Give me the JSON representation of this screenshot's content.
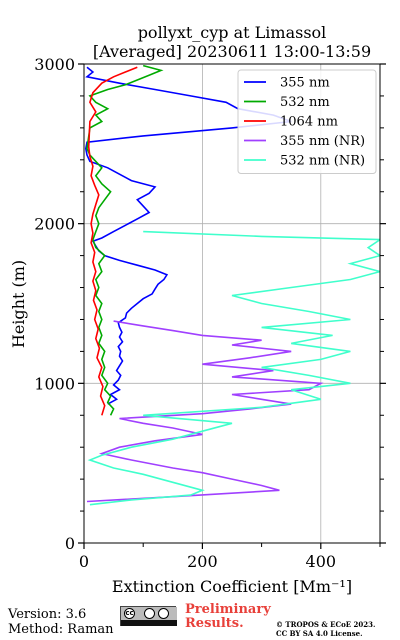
{
  "chart_data": {
    "type": "line",
    "title": "pollyxt_cyp at Limassol",
    "subtitle": "[Averaged] 20230611 13:00-13:59",
    "xlabel": "Extinction Coefficient [Mm⁻¹]",
    "ylabel": "Height (m)",
    "xlim": [
      0,
      500
    ],
    "ylim": [
      0,
      3000
    ],
    "x_ticks": [
      0,
      200,
      400
    ],
    "y_ticks": [
      0,
      1000,
      2000,
      3000
    ],
    "grid": true,
    "legend_position": "top-right",
    "series": [
      {
        "name": "355 nm",
        "color": "#0000ff",
        "points": [
          [
            40,
            870
          ],
          [
            55,
            900
          ],
          [
            45,
            930
          ],
          [
            60,
            960
          ],
          [
            50,
            990
          ],
          [
            58,
            1020
          ],
          [
            62,
            1050
          ],
          [
            55,
            1080
          ],
          [
            60,
            1110
          ],
          [
            65,
            1140
          ],
          [
            60,
            1170
          ],
          [
            62,
            1200
          ],
          [
            58,
            1230
          ],
          [
            65,
            1260
          ],
          [
            60,
            1290
          ],
          [
            64,
            1320
          ],
          [
            60,
            1350
          ],
          [
            58,
            1380
          ],
          [
            70,
            1410
          ],
          [
            72,
            1440
          ],
          [
            80,
            1470
          ],
          [
            90,
            1500
          ],
          [
            100,
            1530
          ],
          [
            115,
            1560
          ],
          [
            120,
            1590
          ],
          [
            125,
            1620
          ],
          [
            135,
            1650
          ],
          [
            140,
            1680
          ],
          [
            120,
            1710
          ],
          [
            90,
            1740
          ],
          [
            60,
            1770
          ],
          [
            35,
            1800
          ],
          [
            25,
            1830
          ],
          [
            20,
            1860
          ],
          [
            15,
            1890
          ],
          [
            30,
            1910
          ],
          [
            50,
            1950
          ],
          [
            70,
            1990
          ],
          [
            90,
            2030
          ],
          [
            110,
            2070
          ],
          [
            100,
            2110
          ],
          [
            90,
            2150
          ],
          [
            110,
            2190
          ],
          [
            120,
            2230
          ],
          [
            80,
            2270
          ],
          [
            60,
            2310
          ],
          [
            40,
            2350
          ],
          [
            10,
            2390
          ],
          [
            5,
            2430
          ],
          [
            3,
            2470
          ],
          [
            5,
            2510
          ],
          [
            100,
            2550
          ],
          [
            250,
            2600
          ],
          [
            350,
            2640
          ],
          [
            320,
            2680
          ],
          [
            260,
            2720
          ],
          [
            240,
            2760
          ],
          [
            180,
            2800
          ],
          [
            120,
            2840
          ],
          [
            60,
            2880
          ],
          [
            5,
            2920
          ],
          [
            15,
            2950
          ],
          [
            5,
            2980
          ]
        ]
      },
      {
        "name": "532 nm",
        "color": "#00aa00",
        "points": [
          [
            45,
            800
          ],
          [
            50,
            840
          ],
          [
            40,
            880
          ],
          [
            45,
            920
          ],
          [
            35,
            960
          ],
          [
            40,
            1000
          ],
          [
            30,
            1050
          ],
          [
            35,
            1100
          ],
          [
            30,
            1150
          ],
          [
            35,
            1200
          ],
          [
            25,
            1250
          ],
          [
            30,
            1300
          ],
          [
            25,
            1350
          ],
          [
            30,
            1400
          ],
          [
            25,
            1450
          ],
          [
            30,
            1500
          ],
          [
            20,
            1550
          ],
          [
            25,
            1600
          ],
          [
            20,
            1650
          ],
          [
            30,
            1700
          ],
          [
            25,
            1750
          ],
          [
            35,
            1800
          ],
          [
            20,
            1850
          ],
          [
            15,
            1900
          ],
          [
            20,
            1950
          ],
          [
            25,
            2000
          ],
          [
            20,
            2050
          ],
          [
            25,
            2100
          ],
          [
            35,
            2150
          ],
          [
            45,
            2200
          ],
          [
            30,
            2250
          ],
          [
            20,
            2300
          ],
          [
            30,
            2350
          ],
          [
            20,
            2390
          ],
          [
            10,
            2430
          ],
          [
            5,
            2470
          ],
          [
            10,
            2600
          ],
          [
            30,
            2640
          ],
          [
            20,
            2680
          ],
          [
            40,
            2720
          ],
          [
            20,
            2760
          ],
          [
            10,
            2800
          ],
          [
            40,
            2840
          ],
          [
            70,
            2870
          ],
          [
            90,
            2900
          ],
          [
            110,
            2930
          ],
          [
            130,
            2960
          ],
          [
            100,
            2990
          ]
        ]
      },
      {
        "name": "1064 nm",
        "color": "#ff0000",
        "points": [
          [
            30,
            800
          ],
          [
            35,
            860
          ],
          [
            28,
            920
          ],
          [
            32,
            980
          ],
          [
            25,
            1040
          ],
          [
            30,
            1100
          ],
          [
            22,
            1160
          ],
          [
            26,
            1220
          ],
          [
            20,
            1280
          ],
          [
            24,
            1340
          ],
          [
            18,
            1400
          ],
          [
            22,
            1460
          ],
          [
            16,
            1520
          ],
          [
            20,
            1580
          ],
          [
            15,
            1640
          ],
          [
            20,
            1700
          ],
          [
            15,
            1760
          ],
          [
            18,
            1820
          ],
          [
            12,
            1880
          ],
          [
            15,
            1940
          ],
          [
            12,
            2000
          ],
          [
            15,
            2060
          ],
          [
            20,
            2120
          ],
          [
            25,
            2180
          ],
          [
            18,
            2240
          ],
          [
            12,
            2300
          ],
          [
            15,
            2360
          ],
          [
            10,
            2420
          ],
          [
            8,
            2480
          ],
          [
            10,
            2640
          ],
          [
            20,
            2700
          ],
          [
            10,
            2760
          ],
          [
            15,
            2820
          ],
          [
            30,
            2880
          ],
          [
            50,
            2920
          ],
          [
            70,
            2950
          ],
          [
            90,
            2980
          ]
        ]
      },
      {
        "name": "355 nm (NR)",
        "color": "#a040ff",
        "points": [
          [
            5,
            260
          ],
          [
            150,
            290
          ],
          [
            330,
            330
          ],
          [
            300,
            360
          ],
          [
            250,
            400
          ],
          [
            200,
            440
          ],
          [
            150,
            470
          ],
          [
            80,
            520
          ],
          [
            30,
            560
          ],
          [
            60,
            600
          ],
          [
            120,
            640
          ],
          [
            200,
            680
          ],
          [
            150,
            720
          ],
          [
            100,
            750
          ],
          [
            60,
            780
          ],
          [
            200,
            810
          ],
          [
            280,
            840
          ],
          [
            350,
            870
          ],
          [
            300,
            900
          ],
          [
            250,
            930
          ],
          [
            380,
            960
          ],
          [
            400,
            1000
          ],
          [
            250,
            1040
          ],
          [
            320,
            1080
          ],
          [
            200,
            1120
          ],
          [
            280,
            1160
          ],
          [
            350,
            1200
          ],
          [
            250,
            1240
          ],
          [
            300,
            1270
          ],
          [
            200,
            1300
          ],
          [
            150,
            1330
          ],
          [
            100,
            1360
          ],
          [
            50,
            1390
          ]
        ]
      },
      {
        "name": "532 nm (NR)",
        "color": "#40ffcc",
        "points": [
          [
            10,
            240
          ],
          [
            80,
            270
          ],
          [
            180,
            300
          ],
          [
            200,
            330
          ],
          [
            150,
            380
          ],
          [
            100,
            430
          ],
          [
            50,
            470
          ],
          [
            10,
            520
          ],
          [
            30,
            550
          ],
          [
            80,
            600
          ],
          [
            150,
            650
          ],
          [
            200,
            700
          ],
          [
            250,
            750
          ],
          [
            100,
            800
          ],
          [
            300,
            850
          ],
          [
            400,
            900
          ],
          [
            350,
            960
          ],
          [
            450,
            1000
          ],
          [
            380,
            1050
          ],
          [
            300,
            1100
          ],
          [
            400,
            1150
          ],
          [
            450,
            1200
          ],
          [
            350,
            1250
          ],
          [
            420,
            1300
          ],
          [
            300,
            1350
          ],
          [
            450,
            1400
          ],
          [
            380,
            1450
          ],
          [
            300,
            1500
          ],
          [
            250,
            1550
          ],
          [
            350,
            1600
          ],
          [
            450,
            1650
          ],
          [
            500,
            1700
          ],
          [
            450,
            1750
          ],
          [
            500,
            1800
          ],
          [
            480,
            1850
          ],
          [
            500,
            1900
          ],
          [
            300,
            1920
          ],
          [
            100,
            1950
          ]
        ]
      }
    ]
  },
  "footer": {
    "version": "Version: 3.6",
    "method": "Method: Raman",
    "cc_label": "cc",
    "preliminary_line1": "Preliminary",
    "preliminary_line2": "Results.",
    "copyright_line1": "© TROPOS & ECoE 2023.",
    "copyright_line2": "CC BY SA 4.0 License."
  },
  "colors": {
    "preliminary": "#e8403a",
    "grid": "#b0b0b0"
  }
}
